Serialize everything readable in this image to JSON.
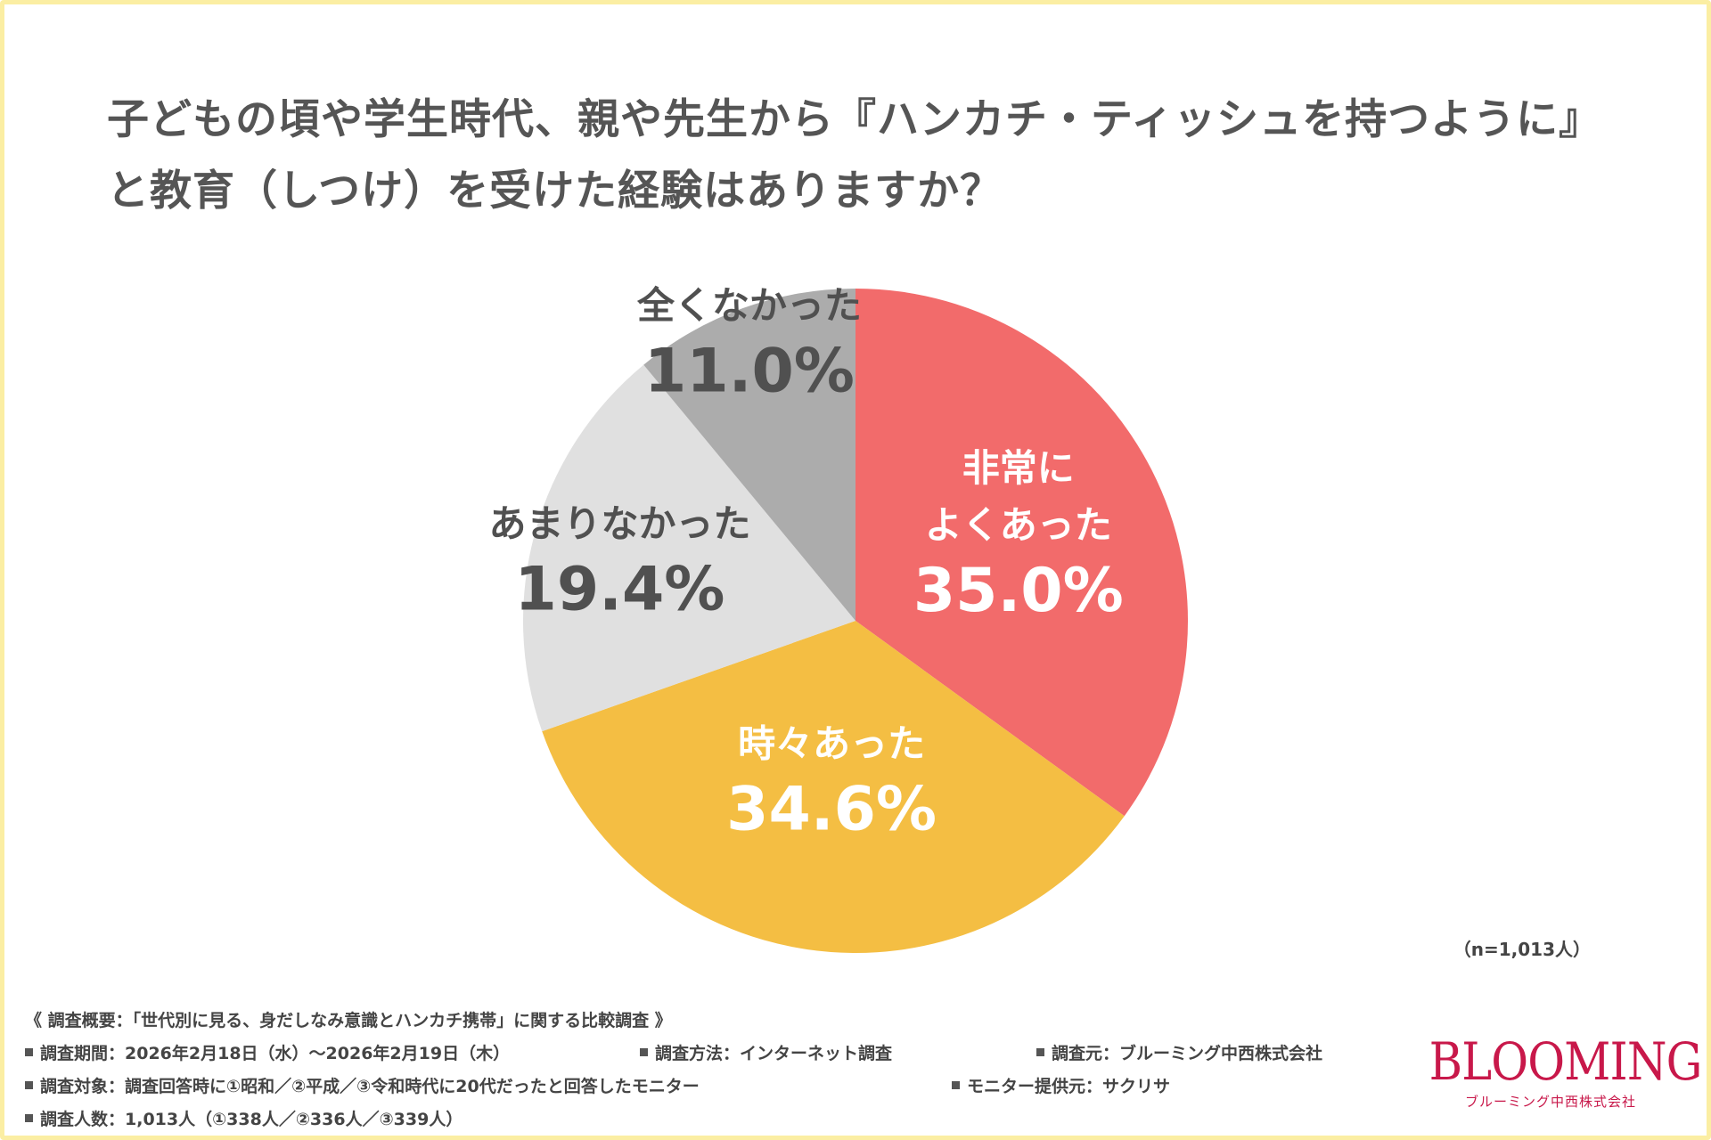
{
  "title_lines": [
    "子どもの頃や学生時代、親や先生から『ハンカチ・ティッシュを持つように』",
    "と教育（しつけ）を受けた経験はありますか？"
  ],
  "chart_data": {
    "type": "pie",
    "title": "子どもの頃や学生時代、親や先生から『ハンカチ・ティッシュを持つように』と教育（しつけ）を受けた経験はありますか？",
    "slices": [
      {
        "label": [
          "非常に",
          "よくあった"
        ],
        "value": 35.0,
        "value_label": "35.0%",
        "color": "#f26b6b",
        "text_color": "#ffffff"
      },
      {
        "label": [
          "時々あった"
        ],
        "value": 34.6,
        "value_label": "34.6%",
        "color": "#f4be43",
        "text_color": "#ffffff"
      },
      {
        "label": [
          "あまりなかった"
        ],
        "value": 19.4,
        "value_label": "19.4%",
        "color": "#e0e0e0",
        "text_color": "#505050"
      },
      {
        "label": [
          "全くなかった"
        ],
        "value": 11.0,
        "value_label": "11.0%",
        "color": "#acacac",
        "text_color": "#505050"
      }
    ],
    "start": "12 o'clock",
    "direction": "clockwise"
  },
  "sample_size": "（n=1,013人）",
  "survey": {
    "overview": "《 調査概要：「世代別に見る、身だしなみ意識とハンカチ携帯」に関する比較調査 》",
    "period": "調査期間：2026年2月18日（水）～2026年2月19日（木）",
    "method": "調査方法：インターネット調査",
    "source": "調査元：ブルーミング中西株式会社",
    "target": "調査対象：調査回答時に①昭和／②平成／③令和時代に20代だったと回答したモニター",
    "provider": "モニター提供元：サクリサ",
    "count": "調査人数：1,013人（①338人／②336人／③339人）"
  },
  "logo": {
    "main": "BLOOMING",
    "sub": "ブルーミング中西株式会社"
  }
}
